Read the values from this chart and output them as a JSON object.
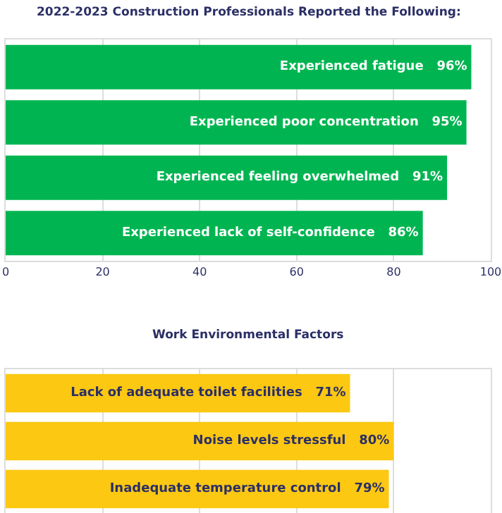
{
  "chart_data": [
    {
      "type": "bar",
      "orientation": "horizontal",
      "title": "2022-2023 Construction Professionals Reported the Following:",
      "categories": [
        "Experienced fatigue",
        "Experienced poor concentration",
        "Experienced feeling overwhelmed",
        "Experienced lack of self-confidence"
      ],
      "values": [
        96,
        95,
        91,
        86
      ],
      "value_labels": [
        "96%",
        "95%",
        "91%",
        "86%"
      ],
      "color": "#00b551",
      "xlim": [
        0,
        100
      ],
      "xticks": [
        0,
        20,
        40,
        60,
        80,
        100
      ],
      "grid": "x",
      "tick_labels": "x"
    },
    {
      "type": "bar",
      "orientation": "horizontal",
      "title": "Work Environmental Factors",
      "categories": [
        "Lack of adequate toilet facilities",
        "Noise levels stressful",
        "Inadequate temperature control"
      ],
      "values": [
        71,
        80,
        79
      ],
      "value_labels": [
        "71%",
        "80%",
        "79%"
      ],
      "color": "#fcc812",
      "xlim": [
        0,
        100
      ],
      "xticks": [
        0,
        20,
        40,
        60,
        80,
        100
      ],
      "grid": "x",
      "tick_labels": false
    }
  ]
}
